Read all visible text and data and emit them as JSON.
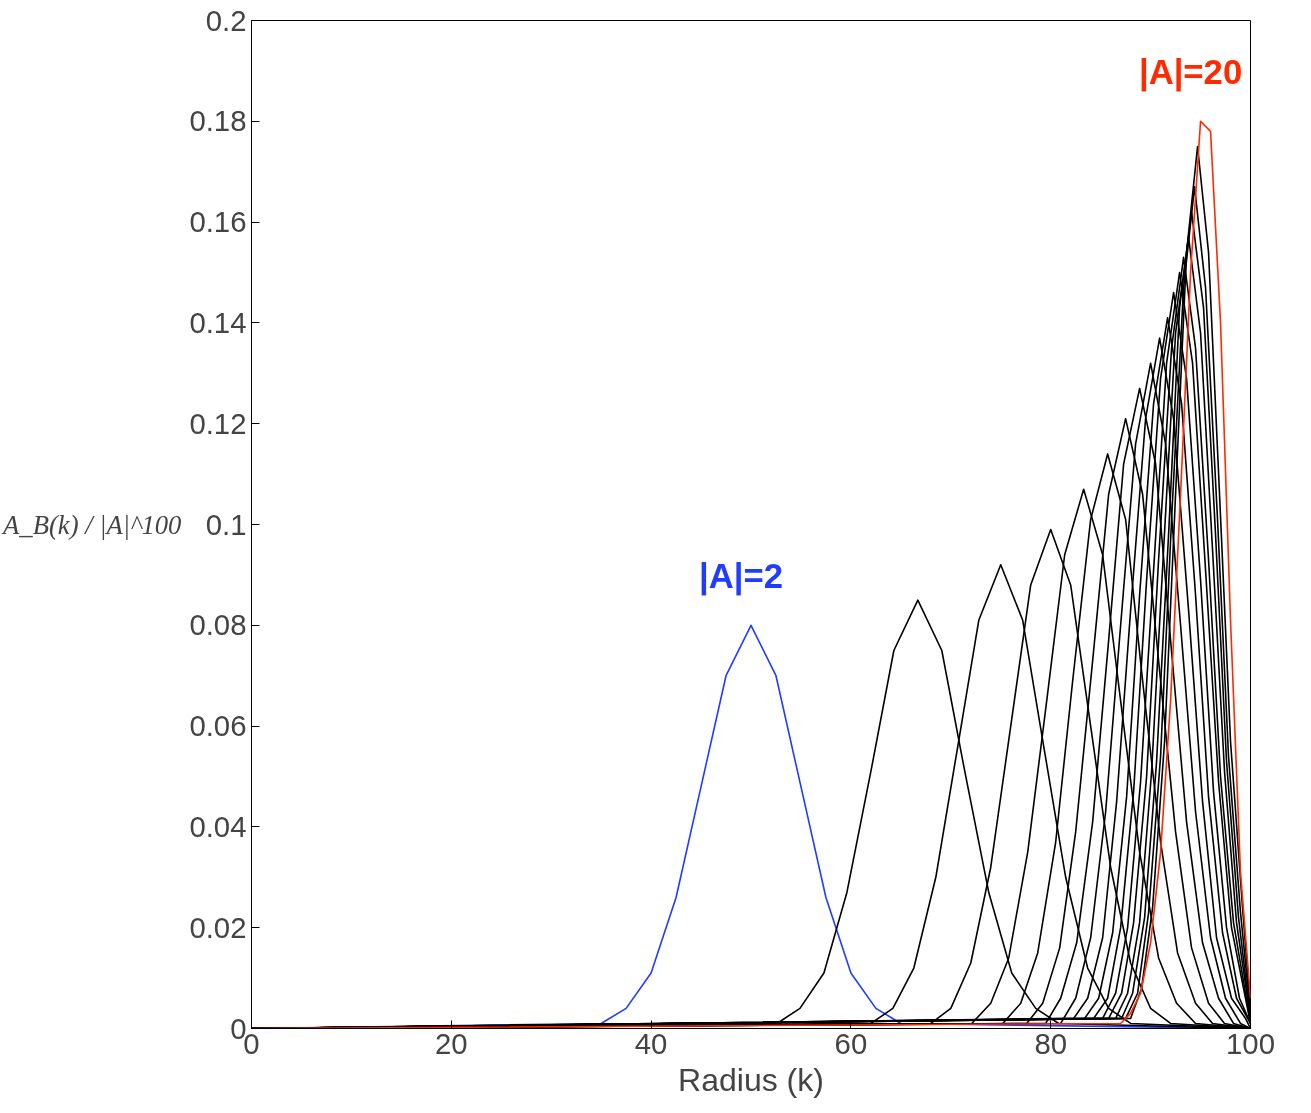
{
  "chart_data": {
    "type": "line",
    "xlabel": "Radius (k)",
    "ylabel": "A_B(k) / |A|^100",
    "xlim": [
      0,
      100
    ],
    "ylim": [
      0,
      0.2
    ],
    "xticks": [
      0,
      20,
      40,
      60,
      80,
      100
    ],
    "yticks": [
      0,
      0.02,
      0.04,
      0.06,
      0.08,
      0.1,
      0.12,
      0.14,
      0.16,
      0.18,
      0.2
    ],
    "grid": false,
    "marker": "none",
    "line_style": "solid",
    "series": [
      {
        "name": "|A|=2",
        "color": "#1f3cff",
        "x": [
          0,
          35,
          37.5,
          40,
          42.5,
          45,
          47.5,
          50,
          52.5,
          55,
          57.5,
          60,
          62.5,
          65,
          100
        ],
        "values": [
          0,
          0.001,
          0.004,
          0.011,
          0.026,
          0.048,
          0.07,
          0.08,
          0.07,
          0.048,
          0.026,
          0.011,
          0.004,
          0.001,
          0
        ]
      },
      {
        "color": "#000000",
        "x": [
          0,
          52.6,
          54.9,
          57.3,
          59.6,
          62.0,
          64.3,
          66.7,
          69.1,
          71.4,
          73.8,
          76.1,
          78.5,
          80.8,
          100
        ],
        "values": [
          0,
          0.001,
          0.004,
          0.011,
          0.027,
          0.051,
          0.075,
          0.085,
          0.075,
          0.051,
          0.027,
          0.011,
          0.004,
          0.001,
          0
        ]
      },
      {
        "color": "#000000",
        "x": [
          0,
          62.0,
          64.2,
          66.3,
          68.5,
          70.7,
          72.8,
          75,
          77.2,
          79.3,
          81.5,
          83.7,
          85.8,
          88.0,
          100
        ],
        "values": [
          0,
          0.001,
          0.004,
          0.012,
          0.03,
          0.056,
          0.081,
          0.092,
          0.081,
          0.056,
          0.03,
          0.012,
          0.004,
          0.001,
          0
        ]
      },
      {
        "color": "#000000",
        "x": [
          0,
          68,
          70,
          72,
          74,
          76,
          78,
          80,
          82,
          84,
          86,
          88,
          90,
          92,
          100
        ],
        "values": [
          0,
          0.001,
          0.004,
          0.013,
          0.032,
          0.06,
          0.088,
          0.099,
          0.088,
          0.06,
          0.032,
          0.013,
          0.004,
          0.001,
          0
        ]
      },
      {
        "color": "#000000",
        "x": [
          0,
          72.1,
          74.0,
          75.8,
          77.7,
          79.6,
          81.4,
          83.3,
          85.2,
          87.0,
          88.9,
          90.8,
          92.6,
          94.5,
          100
        ],
        "values": [
          0,
          0.001,
          0.005,
          0.014,
          0.035,
          0.065,
          0.094,
          0.107,
          0.094,
          0.065,
          0.035,
          0.014,
          0.005,
          0.001,
          0
        ]
      },
      {
        "color": "#000000",
        "x": [
          0,
          75.2,
          77.0,
          78.7,
          80.5,
          82.2,
          84.0,
          85.7,
          87.5,
          89.2,
          91.0,
          92.7,
          94.5,
          96.2,
          100
        ],
        "values": [
          0,
          0.001,
          0.005,
          0.015,
          0.037,
          0.069,
          0.101,
          0.114,
          0.101,
          0.069,
          0.037,
          0.015,
          0.005,
          0.001,
          0
        ]
      },
      {
        "color": "#000000",
        "x": [
          0,
          77.6,
          79.2,
          80.9,
          82.5,
          84.2,
          85.8,
          87.5,
          89.2,
          90.8,
          92.5,
          94.1,
          95.8,
          97.4,
          100
        ],
        "values": [
          0,
          0.001,
          0.005,
          0.016,
          0.039,
          0.073,
          0.106,
          0.121,
          0.106,
          0.073,
          0.039,
          0.016,
          0.005,
          0.001,
          0
        ]
      },
      {
        "color": "#000000",
        "x": [
          0,
          79.5,
          81.0,
          82.6,
          84.2,
          85.8,
          87.3,
          88.9,
          90.5,
          92.0,
          93.6,
          95.2,
          96.8,
          98.3,
          100
        ],
        "values": [
          0,
          0.001,
          0.006,
          0.017,
          0.041,
          0.077,
          0.112,
          0.127,
          0.112,
          0.077,
          0.041,
          0.017,
          0.006,
          0.001,
          0
        ]
      },
      {
        "color": "#000000",
        "x": [
          0,
          81,
          82.5,
          84,
          85.5,
          87,
          88.5,
          90,
          91.5,
          93,
          94.5,
          96,
          97.5,
          99,
          100
        ],
        "values": [
          0,
          0.001,
          0.006,
          0.018,
          0.043,
          0.08,
          0.116,
          0.132,
          0.116,
          0.08,
          0.043,
          0.018,
          0.006,
          0.001,
          0
        ]
      },
      {
        "color": "#000000",
        "x": [
          0,
          82.3,
          83.7,
          85.2,
          86.6,
          88.0,
          89.5,
          90.9,
          92.3,
          93.8,
          95.2,
          96.6,
          98.1,
          99.5,
          100
        ],
        "values": [
          0,
          0.002,
          0.006,
          0.018,
          0.045,
          0.083,
          0.121,
          0.137,
          0.121,
          0.083,
          0.045,
          0.018,
          0.006,
          0.002,
          0
        ]
      },
      {
        "color": "#000000",
        "x": [
          0,
          83.4,
          84.8,
          86.2,
          87.6,
          88.9,
          90.3,
          91.7,
          93.1,
          94.5,
          95.8,
          97.2,
          98.6,
          100
        ],
        "values": [
          0,
          0.002,
          0.006,
          0.019,
          0.046,
          0.086,
          0.124,
          0.141,
          0.124,
          0.086,
          0.046,
          0.019,
          0.006,
          0.001
        ]
      },
      {
        "color": "#000000",
        "x": [
          0,
          84.3,
          85.7,
          87.0,
          88.3,
          89.6,
          91.0,
          92.3,
          93.6,
          95.0,
          96.3,
          97.6,
          98.9,
          100
        ],
        "values": [
          0,
          0.002,
          0.006,
          0.02,
          0.047,
          0.089,
          0.129,
          0.146,
          0.129,
          0.089,
          0.047,
          0.02,
          0.006,
          0.001
        ]
      },
      {
        "color": "#000000",
        "x": [
          0,
          85.2,
          86.5,
          87.7,
          89.0,
          90.3,
          91.6,
          92.9,
          94.2,
          95.5,
          96.8,
          98.1,
          99.4,
          100
        ],
        "values": [
          0,
          0.002,
          0.007,
          0.02,
          0.049,
          0.091,
          0.132,
          0.15,
          0.132,
          0.091,
          0.049,
          0.02,
          0.007,
          0.001
        ]
      },
      {
        "color": "#000000",
        "x": [
          0,
          85.8,
          87.1,
          88.3,
          89.6,
          90.8,
          92.1,
          93.3,
          94.5,
          95.8,
          97.0,
          98.3,
          99.5,
          100
        ],
        "values": [
          0,
          0.002,
          0.007,
          0.021,
          0.05,
          0.093,
          0.135,
          0.153,
          0.135,
          0.093,
          0.05,
          0.021,
          0.007,
          0.001
        ]
      },
      {
        "color": "#000000",
        "x": [
          0,
          86.5,
          87.7,
          88.9,
          90.1,
          91.3,
          92.5,
          93.8,
          95.0,
          96.2,
          97.4,
          98.6,
          100
        ],
        "values": [
          0,
          0.002,
          0.007,
          0.021,
          0.051,
          0.095,
          0.138,
          0.157,
          0.138,
          0.095,
          0.051,
          0.021,
          0.002
        ]
      },
      {
        "color": "#000000",
        "x": [
          0,
          87.1,
          88.2,
          89.4,
          90.6,
          91.8,
          92.9,
          94.1,
          95.3,
          96.5,
          97.6,
          98.8,
          100
        ],
        "values": [
          0,
          0.002,
          0.007,
          0.022,
          0.053,
          0.098,
          0.143,
          0.162,
          0.143,
          0.098,
          0.053,
          0.022,
          0.002
        ]
      },
      {
        "color": "#000000",
        "x": [
          0,
          87.5,
          88.7,
          89.8,
          91.0,
          92.1,
          93.3,
          94.4,
          95.5,
          96.7,
          97.8,
          99.0,
          100
        ],
        "values": [
          0,
          0.002,
          0.007,
          0.023,
          0.054,
          0.101,
          0.147,
          0.167,
          0.147,
          0.101,
          0.054,
          0.023,
          0.003
        ]
      },
      {
        "color": "#000000",
        "x": [
          0,
          88.0,
          89.1,
          90.2,
          91.4,
          92.5,
          93.6,
          94.7,
          95.8,
          96.9,
          98.0,
          99.2,
          100
        ],
        "values": [
          0,
          0.002,
          0.008,
          0.024,
          0.057,
          0.106,
          0.154,
          0.175,
          0.154,
          0.106,
          0.057,
          0.024,
          0.004
        ]
      },
      {
        "name": "|A|=20",
        "color": "#ff2a00",
        "x": [
          0,
          87,
          88,
          89,
          90,
          91,
          92,
          93,
          94,
          95,
          96,
          97,
          98,
          99,
          100
        ],
        "values": [
          0,
          0.001,
          0.003,
          0.007,
          0.017,
          0.035,
          0.065,
          0.106,
          0.15,
          0.18,
          0.178,
          0.14,
          0.081,
          0.031,
          0.006
        ]
      }
    ]
  }
}
